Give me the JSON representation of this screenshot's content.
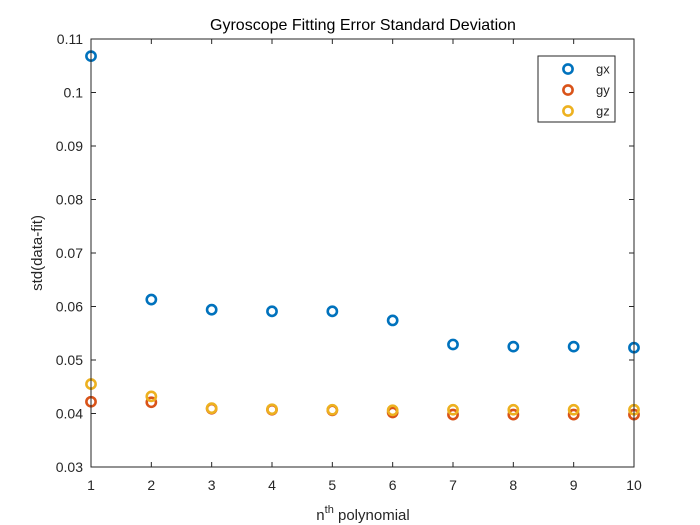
{
  "chart_data": {
    "type": "scatter",
    "title": "Gyroscope Fitting Error Standard Deviation",
    "xlabel_base": "n",
    "xlabel_sup": "th",
    "xlabel_rest": " polynomial",
    "ylabel": "std(data-fit)",
    "xlim": [
      1,
      10
    ],
    "ylim": [
      0.03,
      0.11
    ],
    "xticks": [
      1,
      2,
      3,
      4,
      5,
      6,
      7,
      8,
      9,
      10
    ],
    "yticks": [
      0.03,
      0.04,
      0.05,
      0.06,
      0.07,
      0.08,
      0.09,
      0.1,
      0.11
    ],
    "ytick_labels": [
      "0.03",
      "0.04",
      "0.05",
      "0.06",
      "0.07",
      "0.08",
      "0.09",
      "0.1",
      "0.11"
    ],
    "x": [
      1,
      2,
      3,
      4,
      5,
      6,
      7,
      8,
      9,
      10
    ],
    "series": [
      {
        "name": "gx",
        "color": "#0072BD",
        "values": [
          0.1068,
          0.0613,
          0.0594,
          0.0591,
          0.0591,
          0.0574,
          0.0529,
          0.0525,
          0.0525,
          0.0523
        ]
      },
      {
        "name": "gy",
        "color": "#D95319",
        "values": [
          0.0422,
          0.0421,
          0.0409,
          0.0407,
          0.0406,
          0.0402,
          0.0398,
          0.0398,
          0.0398,
          0.0398
        ]
      },
      {
        "name": "gz",
        "color": "#EDB120",
        "values": [
          0.0455,
          0.0432,
          0.041,
          0.0408,
          0.0407,
          0.0406,
          0.0407,
          0.0407,
          0.0407,
          0.0407
        ]
      }
    ],
    "legend_position": "top-right",
    "grid": false,
    "marker": "open-circle"
  }
}
